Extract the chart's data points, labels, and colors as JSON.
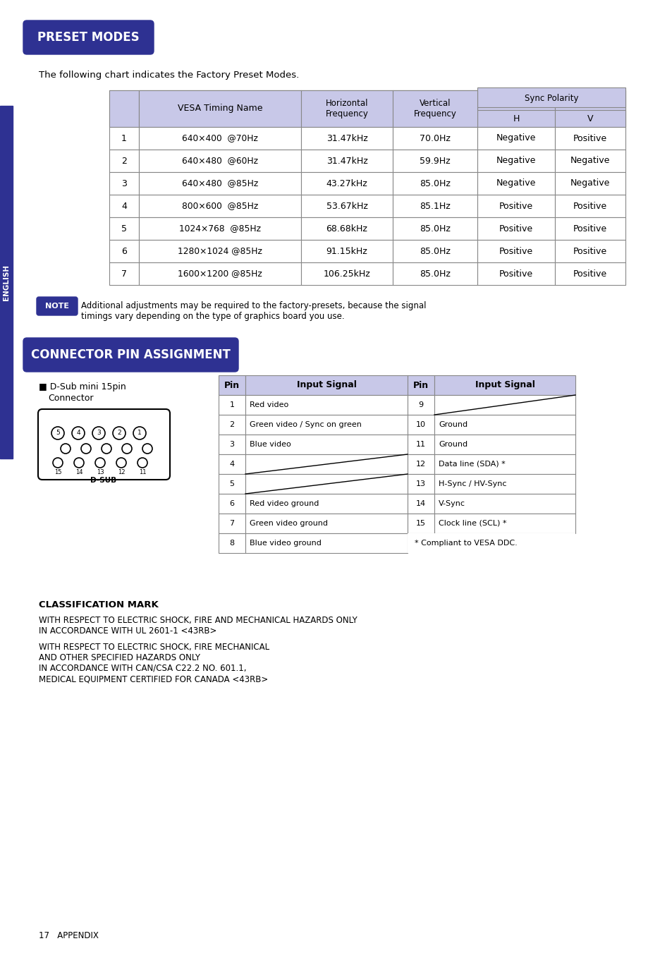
{
  "bg_color": "#ffffff",
  "header_bg": "#c8c8e8",
  "header_dark_bg": "#2e3192",
  "header_text_color": "#ffffff",
  "cell_text_color": "#000000",
  "english_bar_color": "#2e3192",
  "note_bg": "#2e3192",
  "preset_title": "PRESET MODES",
  "connector_title": "CONNECTOR PIN ASSIGNMENT",
  "intro_text": "The following chart indicates the Factory Preset Modes.",
  "note_label": "NOTE",
  "note_text": "Additional adjustments may be required to the factory-presets, because the signal\ntimings vary depending on the type of graphics board you use.",
  "preset_headers": [
    "",
    "VESA Timing Name",
    "Horizontal\nFrequency",
    "Vertical\nFrequency",
    "Sync Polarity\nH",
    "Sync Polarity\nV"
  ],
  "preset_rows": [
    [
      "1",
      "640×400  @70Hz",
      "31.47kHz",
      "70.0Hz",
      "Negative",
      "Positive"
    ],
    [
      "2",
      "640×480  @60Hz",
      "31.47kHz",
      "59.9Hz",
      "Negative",
      "Negative"
    ],
    [
      "3",
      "640×480  @85Hz",
      "43.27kHz",
      "85.0Hz",
      "Negative",
      "Negative"
    ],
    [
      "4",
      "800×600  @85Hz",
      "53.67kHz",
      "85.1Hz",
      "Positive",
      "Positive"
    ],
    [
      "5",
      "1024×768  @85Hz",
      "68.68kHz",
      "85.0Hz",
      "Positive",
      "Positive"
    ],
    [
      "6",
      "1280×1024 @85Hz",
      "91.15kHz",
      "85.0Hz",
      "Positive",
      "Positive"
    ],
    [
      "7",
      "1600×1200 @85Hz",
      "106.25kHz",
      "85.0Hz",
      "Positive",
      "Positive"
    ]
  ],
  "dsub_label": "D-Sub mini 15pin\nConnector",
  "dsub_sublabel": "D-SUB",
  "pin_left_headers": [
    "Pin",
    "Input Signal"
  ],
  "pin_right_headers": [
    "Pin",
    "Input Signal"
  ],
  "pin_left_rows": [
    [
      "1",
      "Red video"
    ],
    [
      "2",
      "Green video / Sync on green"
    ],
    [
      "3",
      "Blue video"
    ],
    [
      "4",
      ""
    ],
    [
      "5",
      ""
    ],
    [
      "6",
      "Red video ground"
    ],
    [
      "7",
      "Green video ground"
    ],
    [
      "8",
      "Blue video ground"
    ]
  ],
  "pin_right_rows": [
    [
      "9",
      ""
    ],
    [
      "10",
      "Ground"
    ],
    [
      "11",
      "Ground"
    ],
    [
      "12",
      "Data line (SDA) *"
    ],
    [
      "13",
      "H-Sync / HV-Sync"
    ],
    [
      "14",
      "V-Sync"
    ],
    [
      "15",
      "Clock line (SCL) *"
    ],
    [
      "",
      "* Compliant to VESA DDC."
    ]
  ],
  "classification_title": "CLASSIFICATION MARK",
  "classification_text1": "WITH RESPECT TO ELECTRIC SHOCK, FIRE AND MECHANICAL HAZARDS ONLY\nIN ACCORDANCE WITH UL 2601-1 <43RB>",
  "classification_text2": "WITH RESPECT TO ELECTRIC SHOCK, FIRE MECHANICAL\nAND OTHER SPECIFIED HAZARDS ONLY\nIN ACCORDANCE WITH CAN/CSA C22.2 NO. 601.1,\nMEDICAL EQUIPMENT CERTIFIED FOR CANADA <43RB>",
  "footer_text": "17   APPENDIX",
  "english_text": "ENGLISH"
}
